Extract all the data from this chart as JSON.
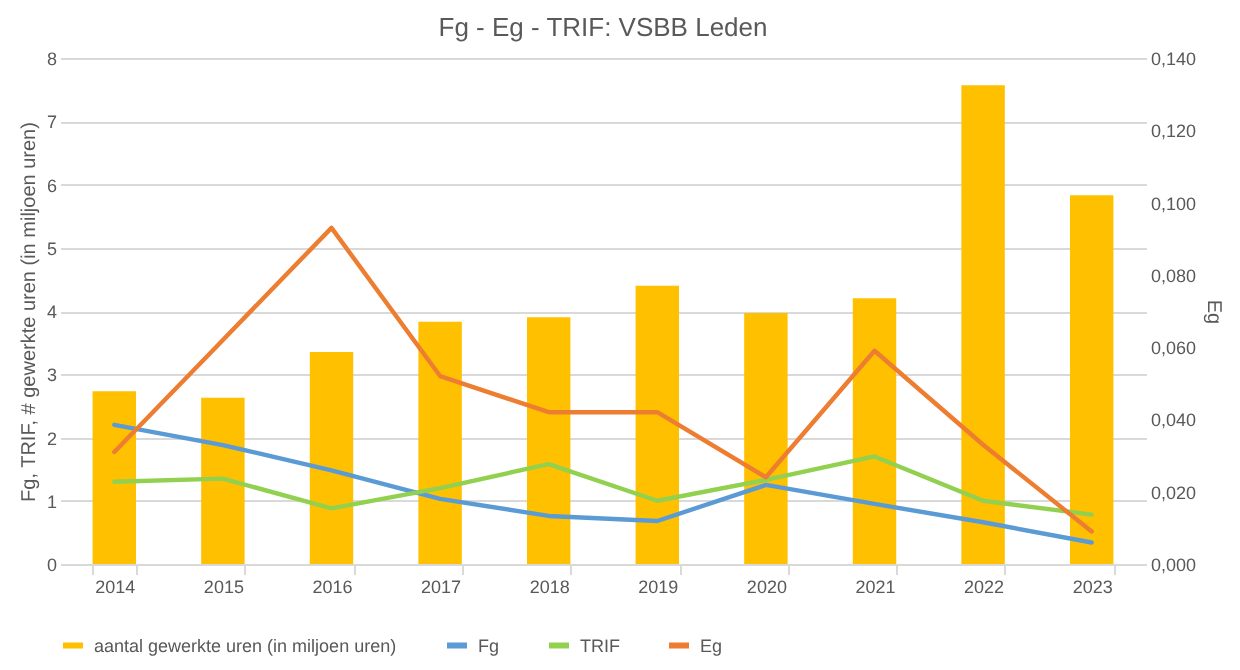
{
  "chart_data": {
    "type": "bar",
    "title": "Fg - Eg - TRIF: VSBB Leden",
    "ylabel": "Fg, TRIF, # gewerkte uren (in miljoen uren)",
    "y2label": "Eg",
    "categories": [
      "2014",
      "2015",
      "2016",
      "2017",
      "2018",
      "2019",
      "2020",
      "2021",
      "2022",
      "2023"
    ],
    "series": [
      {
        "name": "aantal gewerkte uren (in miljoen uren)",
        "color": "#ffc000",
        "values": [
          2.73,
          2.63,
          3.35,
          3.83,
          3.9,
          4.4,
          3.97,
          4.2,
          7.57,
          5.83
        ]
      },
      {
        "name": "Fg",
        "type": "line",
        "color": "#5b9bd5",
        "values": [
          2.2,
          1.88,
          1.48,
          1.03,
          0.76,
          0.68,
          1.25,
          0.95,
          0.66,
          0.34
        ]
      },
      {
        "name": "TRIF",
        "type": "line",
        "color": "#92d050",
        "values": [
          1.3,
          1.35,
          0.88,
          1.2,
          1.58,
          1.0,
          1.33,
          1.7,
          1.0,
          0.78
        ]
      },
      {
        "name": "Eg",
        "type": "line",
        "axis": "y2",
        "color": "#ed7d31",
        "values": [
          0.031,
          0.062,
          0.093,
          0.052,
          0.042,
          0.042,
          0.024,
          0.059,
          0.033,
          0.009
        ]
      }
    ],
    "ylim": [
      0,
      8
    ],
    "yticks": [
      0,
      1,
      2,
      3,
      4,
      5,
      6,
      7,
      8
    ],
    "y2lim": [
      0,
      0.14
    ],
    "y2ticks": [
      {
        "value": 0,
        "label": "0,000"
      },
      {
        "value": 0.02,
        "label": "0,020"
      },
      {
        "value": 0.04,
        "label": "0,040"
      },
      {
        "value": 0.06,
        "label": "0,060"
      },
      {
        "value": 0.08,
        "label": "0,080"
      },
      {
        "value": 0.1,
        "label": "0,100"
      },
      {
        "value": 0.12,
        "label": "0,120"
      },
      {
        "value": 0.14,
        "label": "0,140"
      }
    ],
    "grid": "y",
    "legend": "bottom",
    "marker": "none",
    "line_style": "solid"
  }
}
